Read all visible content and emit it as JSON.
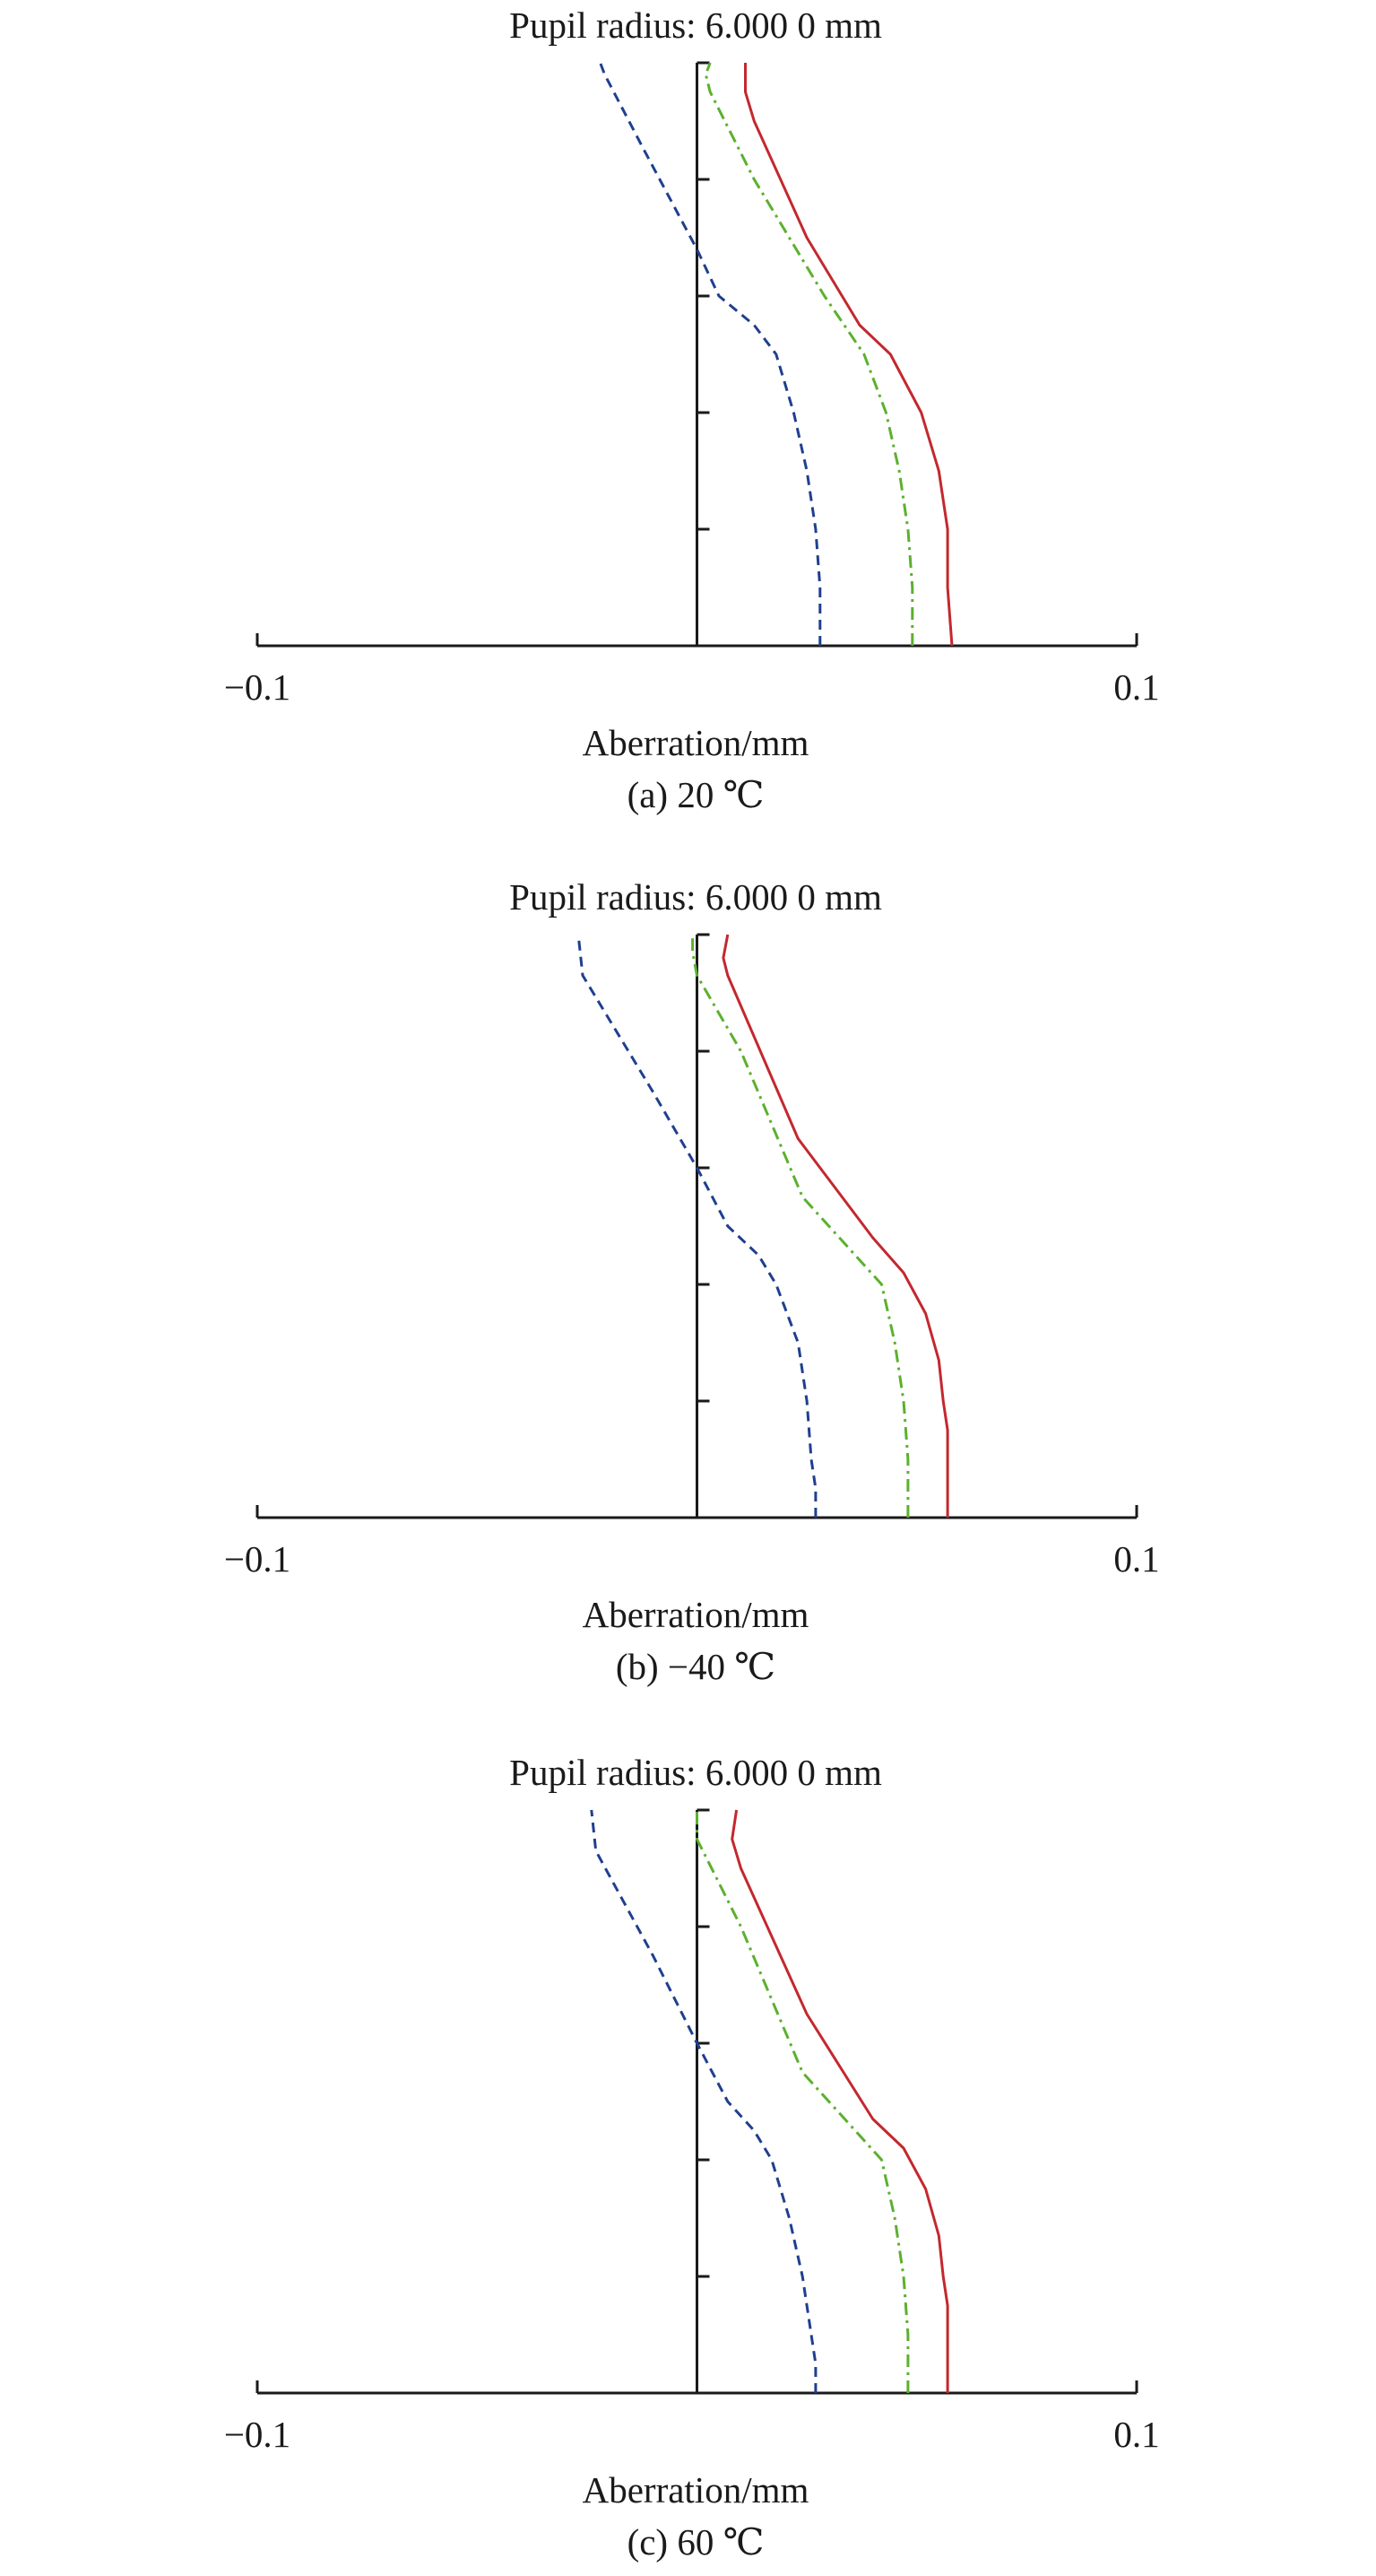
{
  "figure": {
    "colors": {
      "blue": "#1f3f8f",
      "green": "#5cb02e",
      "red": "#c3282e",
      "axis": "#1a1a1a"
    }
  },
  "chart_data": [
    {
      "type": "line",
      "title": "Pupil radius: 6.000 0 mm",
      "caption": "(a) 20 ℃",
      "xlabel": "Aberration/mm",
      "ylabel": "",
      "xlim": [
        -0.1,
        0.1
      ],
      "ylim": [
        0,
        1
      ],
      "x_tick_labels": [
        "−0.1",
        "0.1"
      ],
      "y_ticks": [
        0,
        0.2,
        0.4,
        0.6,
        0.8,
        1.0
      ],
      "grid": false,
      "series": [
        {
          "color": "blue",
          "dash": "dashed",
          "points": [
            [
              0.028,
              0
            ],
            [
              0.028,
              0.05
            ],
            [
              0.028,
              0.1
            ],
            [
              0.027,
              0.2
            ],
            [
              0.025,
              0.3
            ],
            [
              0.022,
              0.4
            ],
            [
              0.018,
              0.5
            ],
            [
              0.013,
              0.55
            ],
            [
              0.005,
              0.6
            ],
            [
              0.0,
              0.68
            ],
            [
              -0.012,
              0.85
            ],
            [
              -0.021,
              0.98
            ],
            [
              -0.022,
              1.0
            ]
          ]
        },
        {
          "color": "green",
          "dash": "dashdot",
          "points": [
            [
              0.049,
              0
            ],
            [
              0.049,
              0.1
            ],
            [
              0.048,
              0.2
            ],
            [
              0.046,
              0.3
            ],
            [
              0.043,
              0.4
            ],
            [
              0.038,
              0.5
            ],
            [
              0.029,
              0.6
            ],
            [
              0.013,
              0.8
            ],
            [
              0.003,
              0.95
            ],
            [
              0.002,
              0.98
            ],
            [
              0.003,
              1.0
            ]
          ]
        },
        {
          "color": "red",
          "dash": "solid",
          "points": [
            [
              0.058,
              0
            ],
            [
              0.057,
              0.1
            ],
            [
              0.057,
              0.2
            ],
            [
              0.055,
              0.3
            ],
            [
              0.051,
              0.4
            ],
            [
              0.044,
              0.5
            ],
            [
              0.037,
              0.55
            ],
            [
              0.025,
              0.7
            ],
            [
              0.013,
              0.9
            ],
            [
              0.011,
              0.95
            ],
            [
              0.011,
              1.0
            ]
          ]
        }
      ]
    },
    {
      "type": "line",
      "title": "Pupil radius: 6.000 0 mm",
      "caption": "(b) −40 ℃",
      "xlabel": "Aberration/mm",
      "ylabel": "",
      "xlim": [
        -0.1,
        0.1
      ],
      "ylim": [
        0,
        1
      ],
      "x_tick_labels": [
        "−0.1",
        "0.1"
      ],
      "y_ticks": [
        0,
        0.2,
        0.4,
        0.6,
        0.8,
        1.0
      ],
      "grid": false,
      "series": [
        {
          "color": "blue",
          "dash": "dashed",
          "points": [
            [
              0.027,
              0
            ],
            [
              0.027,
              0.05
            ],
            [
              0.026,
              0.1
            ],
            [
              0.025,
              0.2
            ],
            [
              0.023,
              0.3
            ],
            [
              0.018,
              0.4
            ],
            [
              0.014,
              0.45
            ],
            [
              0.007,
              0.5
            ],
            [
              0.0,
              0.6
            ],
            [
              -0.01,
              0.73
            ],
            [
              -0.026,
              0.93
            ],
            [
              -0.027,
              1.0
            ]
          ]
        },
        {
          "color": "green",
          "dash": "dashdot",
          "points": [
            [
              0.048,
              0
            ],
            [
              0.048,
              0.1
            ],
            [
              0.047,
              0.2
            ],
            [
              0.045,
              0.3
            ],
            [
              0.042,
              0.4
            ],
            [
              0.036,
              0.45
            ],
            [
              0.024,
              0.55
            ],
            [
              0.01,
              0.8
            ],
            [
              0.0,
              0.93
            ],
            [
              -0.001,
              0.97
            ],
            [
              -0.001,
              1.0
            ]
          ]
        },
        {
          "color": "red",
          "dash": "solid",
          "points": [
            [
              0.057,
              0
            ],
            [
              0.057,
              0.15
            ],
            [
              0.056,
              0.2
            ],
            [
              0.055,
              0.27
            ],
            [
              0.052,
              0.35
            ],
            [
              0.047,
              0.42
            ],
            [
              0.04,
              0.48
            ],
            [
              0.023,
              0.65
            ],
            [
              0.007,
              0.93
            ],
            [
              0.006,
              0.96
            ],
            [
              0.007,
              1.0
            ]
          ]
        }
      ]
    },
    {
      "type": "line",
      "title": "Pupil radius: 6.000 0 mm",
      "caption": "(c) 60 ℃",
      "xlabel": "Aberration/mm",
      "ylabel": "",
      "xlim": [
        -0.1,
        0.1
      ],
      "ylim": [
        0,
        1
      ],
      "x_tick_labels": [
        "−0.1",
        "0.1"
      ],
      "y_ticks": [
        0,
        0.2,
        0.4,
        0.6,
        0.8,
        1.0
      ],
      "grid": false,
      "series": [
        {
          "color": "blue",
          "dash": "dashed",
          "points": [
            [
              0.027,
              0
            ],
            [
              0.027,
              0.05
            ],
            [
              0.026,
              0.1
            ],
            [
              0.024,
              0.2
            ],
            [
              0.021,
              0.3
            ],
            [
              0.017,
              0.4
            ],
            [
              0.013,
              0.45
            ],
            [
              0.007,
              0.5
            ],
            [
              0.0,
              0.6
            ],
            [
              -0.01,
              0.75
            ],
            [
              -0.023,
              0.93
            ],
            [
              -0.024,
              1.0
            ]
          ]
        },
        {
          "color": "green",
          "dash": "dashdot",
          "points": [
            [
              0.048,
              0
            ],
            [
              0.048,
              0.1
            ],
            [
              0.047,
              0.2
            ],
            [
              0.045,
              0.3
            ],
            [
              0.042,
              0.4
            ],
            [
              0.036,
              0.45
            ],
            [
              0.024,
              0.55
            ],
            [
              0.01,
              0.8
            ],
            [
              0.0,
              0.95
            ],
            [
              0.0,
              1.0
            ]
          ]
        },
        {
          "color": "red",
          "dash": "solid",
          "points": [
            [
              0.057,
              0
            ],
            [
              0.057,
              0.15
            ],
            [
              0.056,
              0.2
            ],
            [
              0.055,
              0.27
            ],
            [
              0.052,
              0.35
            ],
            [
              0.047,
              0.42
            ],
            [
              0.04,
              0.47
            ],
            [
              0.025,
              0.65
            ],
            [
              0.01,
              0.9
            ],
            [
              0.008,
              0.95
            ],
            [
              0.009,
              1.0
            ]
          ]
        }
      ]
    }
  ]
}
